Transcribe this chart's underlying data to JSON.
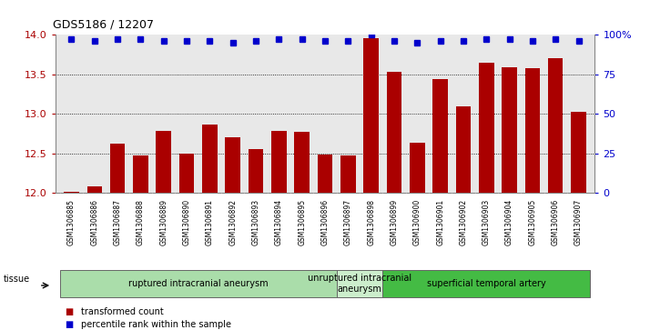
{
  "title": "GDS5186 / 12207",
  "samples": [
    "GSM1306885",
    "GSM1306886",
    "GSM1306887",
    "GSM1306888",
    "GSM1306889",
    "GSM1306890",
    "GSM1306891",
    "GSM1306892",
    "GSM1306893",
    "GSM1306894",
    "GSM1306895",
    "GSM1306896",
    "GSM1306897",
    "GSM1306898",
    "GSM1306899",
    "GSM1306900",
    "GSM1306901",
    "GSM1306902",
    "GSM1306903",
    "GSM1306904",
    "GSM1306905",
    "GSM1306906",
    "GSM1306907"
  ],
  "transformed_count": [
    12.02,
    12.08,
    12.62,
    12.47,
    12.78,
    12.5,
    12.86,
    12.7,
    12.56,
    12.78,
    12.77,
    12.49,
    12.47,
    13.95,
    13.53,
    12.64,
    13.44,
    13.1,
    13.65,
    13.59,
    13.58,
    13.7,
    13.02
  ],
  "percentile_rank": [
    97,
    96,
    97,
    97,
    96,
    96,
    96,
    95,
    96,
    97,
    97,
    96,
    96,
    100,
    96,
    95,
    96,
    96,
    97,
    97,
    96,
    97,
    96
  ],
  "groups": [
    {
      "label": "ruptured intracranial aneurysm",
      "start": 0,
      "end": 12,
      "color": "#aaddaa"
    },
    {
      "label": "unruptured intracranial\naneurysm",
      "start": 12,
      "end": 14,
      "color": "#cceecc"
    },
    {
      "label": "superficial temporal artery",
      "start": 14,
      "end": 23,
      "color": "#44bb44"
    }
  ],
  "ylim": [
    12,
    14
  ],
  "yticks": [
    12,
    12.5,
    13,
    13.5,
    14
  ],
  "y2lim": [
    0,
    100
  ],
  "y2ticks": [
    0,
    25,
    50,
    75,
    100
  ],
  "bar_color": "#AA0000",
  "dot_color": "#0000CC",
  "plot_bg": "#E8E8E8",
  "xlabel_bg": "#CCCCCC",
  "tissue_label": "tissue",
  "legend_bar": "transformed count",
  "legend_dot": "percentile rank within the sample"
}
